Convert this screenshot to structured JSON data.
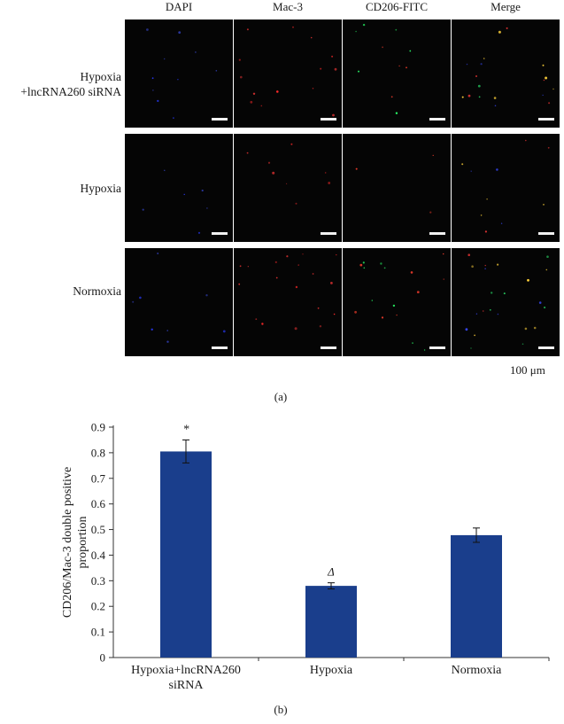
{
  "figure_a": {
    "columns": [
      "DAPI",
      "Mac-3",
      "CD206-FITC",
      "Merge"
    ],
    "rows": [
      {
        "label_lines": [
          "Hypoxia",
          "+lncRNA260 siRNA"
        ]
      },
      {
        "label_lines": [
          "Hypoxia"
        ]
      },
      {
        "label_lines": [
          "Normoxia"
        ]
      }
    ],
    "scale_label": "100 μm",
    "panel_label": "(a)"
  },
  "figure_b": {
    "panel_label": "(b)"
  },
  "chart_data": {
    "type": "bar",
    "categories": [
      "Hypoxia+lncRNA260 siRNA",
      "Hypoxia",
      "Normoxia"
    ],
    "category_label_lines": [
      [
        "Hypoxia+lncRNA260",
        "siRNA"
      ],
      [
        "Hypoxia"
      ],
      [
        "Normoxia"
      ]
    ],
    "values": [
      0.805,
      0.28,
      0.478
    ],
    "errors": [
      0.045,
      0.012,
      0.028
    ],
    "annotations": [
      "*",
      "Δ",
      ""
    ],
    "bar_color": "#1a3e8c",
    "title": "",
    "xlabel": "",
    "ylabel_lines": [
      "CD206/Mac-3 double positive",
      "proportion"
    ],
    "ylim": [
      0,
      0.9
    ],
    "yticks": [
      "0",
      "0.1",
      "0.2",
      "0.3",
      "0.4",
      "0.5",
      "0.6",
      "0.7",
      "0.8",
      "0.9"
    ],
    "grid": false,
    "legend": "none"
  }
}
